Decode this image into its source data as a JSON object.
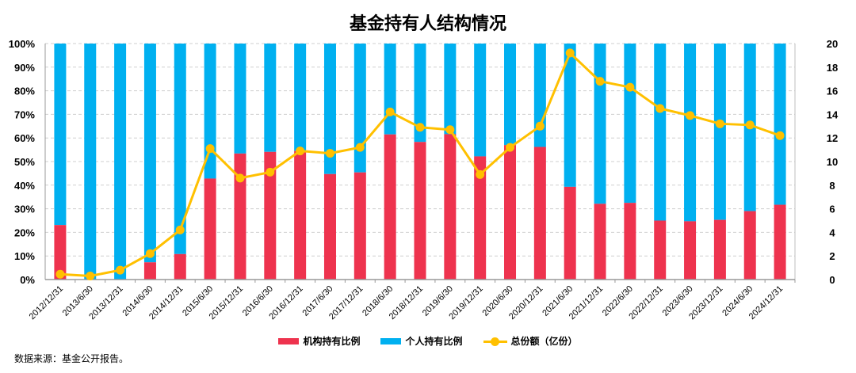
{
  "chart_data": {
    "type": "bar+line",
    "title": "基金持有人结构情况",
    "categories": [
      "2012/12/31",
      "2013/6/30",
      "2013/12/31",
      "2014/6/30",
      "2014/12/31",
      "2015/6/30",
      "2015/12/31",
      "2016/6/30",
      "2016/12/31",
      "2017/6/30",
      "2017/12/31",
      "2018/6/30",
      "2018/12/31",
      "2019/6/30",
      "2019/12/31",
      "2020/6/30",
      "2020/12/31",
      "2021/6/30",
      "2021/12/31",
      "2022/6/30",
      "2022/12/31",
      "2023/6/30",
      "2023/12/31",
      "2024/6/30",
      "2024/12/31"
    ],
    "series": [
      {
        "name": "机构持有比例",
        "type": "stacked-bar",
        "axis": "left",
        "color": "#EE334E",
        "values": [
          23.1,
          0,
          0,
          7.3,
          10.8,
          42.8,
          53.4,
          54.1,
          54.5,
          44.7,
          45.4,
          61.5,
          58.3,
          61.6,
          52.2,
          57.0,
          56.2,
          39.3,
          32.1,
          32.5,
          25.0,
          24.7,
          25.3,
          29.0,
          31.7
        ]
      },
      {
        "name": "个人持有比例",
        "type": "stacked-bar",
        "axis": "left",
        "color": "#00B0F0",
        "values": [
          76.9,
          100,
          100,
          92.7,
          89.2,
          57.2,
          46.6,
          45.9,
          45.5,
          55.3,
          54.6,
          38.5,
          41.7,
          38.4,
          47.8,
          43.0,
          43.8,
          60.7,
          67.9,
          67.5,
          75.0,
          75.3,
          74.7,
          71.0,
          68.3
        ]
      },
      {
        "name": "总份额（亿份）",
        "type": "line",
        "axis": "right",
        "color": "#FFC000",
        "values": [
          0.45,
          0.3,
          0.8,
          2.2,
          4.2,
          11.1,
          8.6,
          9.1,
          10.9,
          10.7,
          11.2,
          14.2,
          12.9,
          12.7,
          8.9,
          11.2,
          13.0,
          19.2,
          16.8,
          16.3,
          14.5,
          13.9,
          13.2,
          13.1,
          12.2
        ]
      }
    ],
    "y_left": {
      "ylim": [
        0,
        100
      ],
      "ticks": [
        "0%",
        "10%",
        "20%",
        "30%",
        "40%",
        "50%",
        "60%",
        "70%",
        "80%",
        "90%",
        "100%"
      ]
    },
    "y_right": {
      "ylim": [
        0,
        20
      ],
      "ticks": [
        "0",
        "2",
        "4",
        "6",
        "8",
        "10",
        "12",
        "14",
        "16",
        "18",
        "20"
      ]
    },
    "grid": true,
    "legend_position": "bottom"
  },
  "source": "数据来源：基金公开报告。"
}
